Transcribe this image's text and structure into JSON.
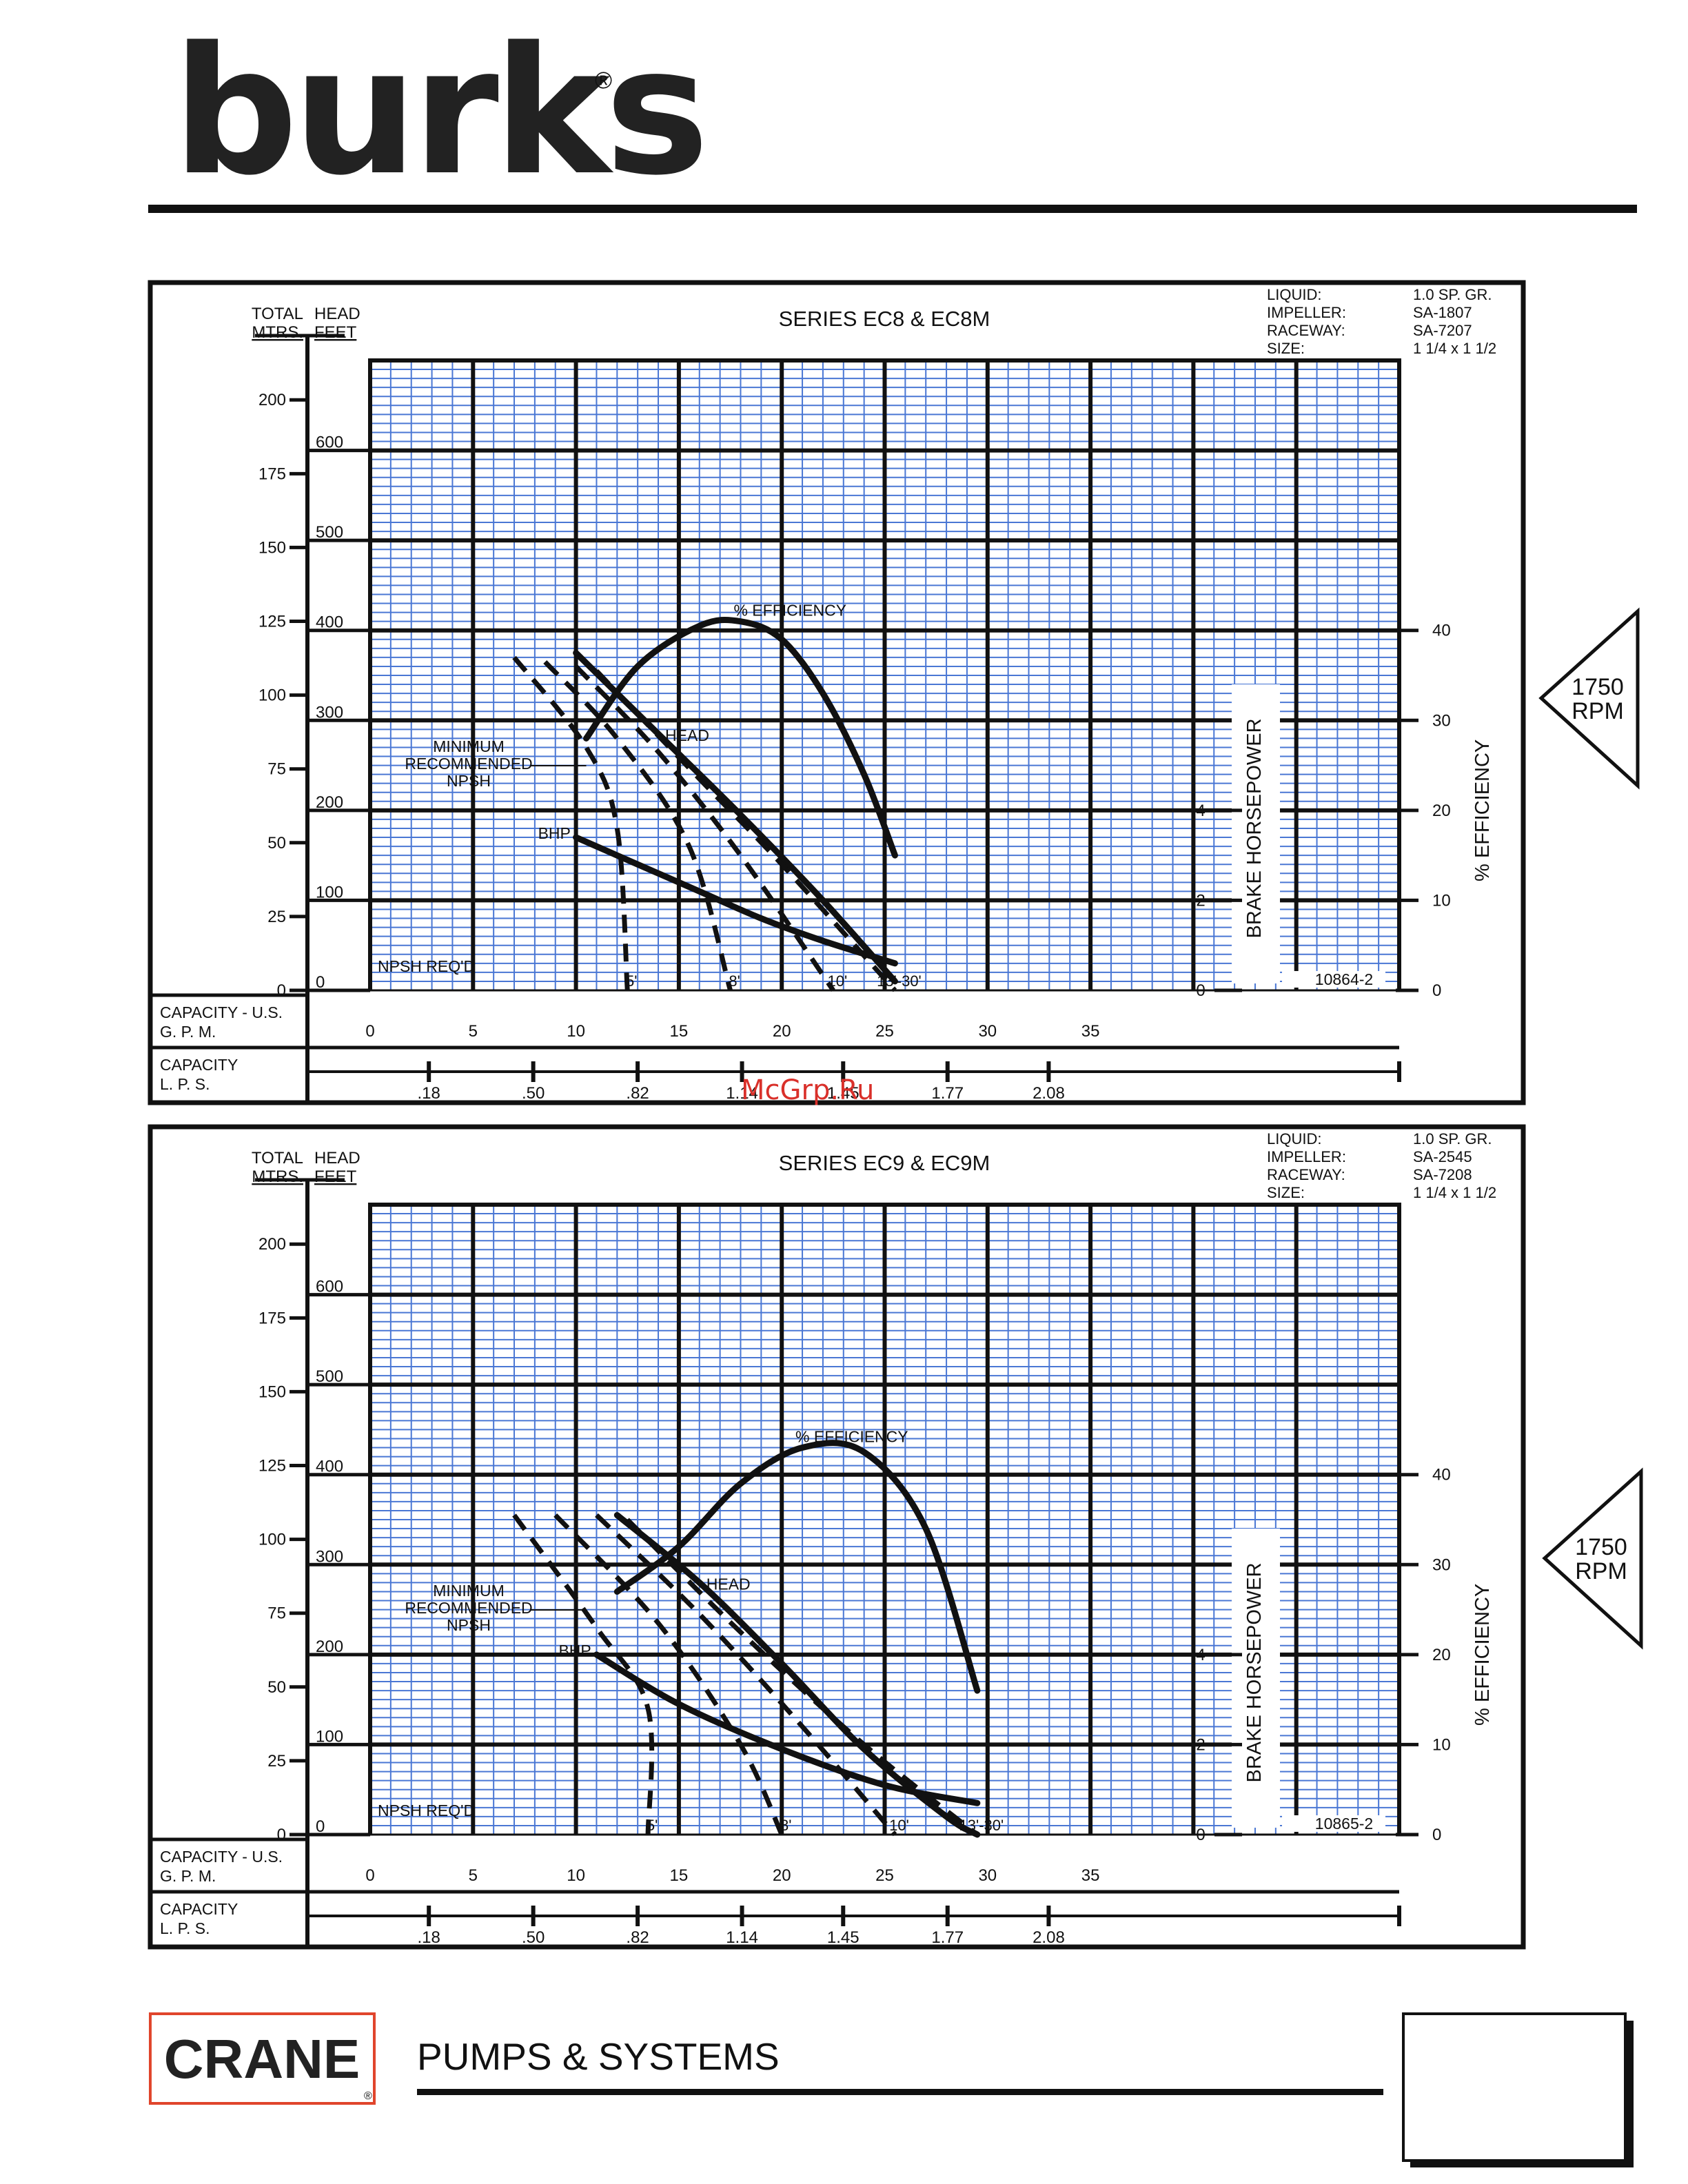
{
  "header": {
    "brand": "burks",
    "registered": "®"
  },
  "rpm_badge": {
    "value": "1750",
    "unit": "RPM"
  },
  "charts": [
    {
      "title": "SERIES  EC8 & EC8M",
      "info": [
        {
          "label": "LIQUID:",
          "value": "1.0 SP. GR."
        },
        {
          "label": "IMPELLER:",
          "value": "SA-1807"
        },
        {
          "label": "RACEWAY:",
          "value": "SA-7207"
        },
        {
          "label": "SIZE:",
          "value": "1 1/4 x 1 1/2"
        }
      ],
      "drawing_number": "10864-2"
    },
    {
      "title": "SERIES  EC9 & EC9M",
      "info": [
        {
          "label": "LIQUID:",
          "value": "1.0 SP. GR."
        },
        {
          "label": "IMPELLER:",
          "value": "SA-2545"
        },
        {
          "label": "RACEWAY:",
          "value": "SA-7208"
        },
        {
          "label": "SIZE:",
          "value": "1 1/4 x 1 1/2"
        }
      ],
      "drawing_number": "10865-2"
    }
  ],
  "labels": {
    "total_head": "TOTAL",
    "head": "HEAD",
    "mtrs": "MTRS.",
    "feet": "FEET",
    "capacity_gpm_1": "CAPACITY - U.S.",
    "capacity_gpm_2": "G. P. M.",
    "capacity_lps_1": "CAPACITY",
    "capacity_lps_2": "L. P. S.",
    "bhp_axis": "BRAKE HORSEPOWER",
    "eff_axis": "% EFFICIENCY",
    "npsh_reqd": "NPSH REQ'D",
    "min_npsh_1": "MINIMUM",
    "min_npsh_2": "RECOMMENDED",
    "min_npsh_3": "NPSH",
    "curve_head": "HEAD",
    "curve_bhp": "BHP",
    "curve_eff": "% EFFICIENCY",
    "npsh_curves": [
      "5'",
      "8'",
      "10'",
      "13'-30'"
    ]
  },
  "axes": {
    "gpm_ticks": [
      "0",
      "5",
      "10",
      "15",
      "20",
      "25",
      "30",
      "35"
    ],
    "lps_ticks": [
      ".18",
      ".50",
      ".82",
      "1.14",
      "1.45",
      "1.77",
      "2.08"
    ],
    "feet_ticks": [
      "0",
      "100",
      "200",
      "300",
      "400",
      "500",
      "600"
    ],
    "meter_ticks": [
      "0",
      "25",
      "50",
      "75",
      "100",
      "125",
      "150",
      "175",
      "200"
    ],
    "bhp_ticks": [
      "0",
      "2",
      "4"
    ],
    "eff_ticks": [
      "0",
      "10",
      "20",
      "30",
      "40"
    ]
  },
  "chart_data": [
    {
      "type": "line",
      "title": "SERIES  EC8 & EC8M",
      "xlabel": "CAPACITY - U.S. G. P. M.",
      "ylabel": "TOTAL HEAD FEET",
      "xlim": [
        0,
        50
      ],
      "ylim": [
        0,
        700
      ],
      "series": [
        {
          "name": "HEAD",
          "axis": "feet",
          "x": [
            10,
            14,
            18,
            22,
            25.5
          ],
          "y": [
            375,
            285,
            195,
            100,
            10
          ]
        },
        {
          "name": "% EFFICIENCY",
          "axis": "efficiency",
          "x": [
            10.5,
            13,
            16,
            18,
            20,
            22,
            24,
            25.5
          ],
          "y": [
            28,
            36,
            40.5,
            41,
            39,
            33,
            24,
            15
          ]
        },
        {
          "name": "BHP",
          "axis": "bhp",
          "x": [
            10,
            13,
            16,
            19,
            22,
            25.5
          ],
          "y": [
            3.4,
            2.8,
            2.2,
            1.6,
            1.1,
            0.6
          ]
        },
        {
          "name": "5'",
          "axis": "feet",
          "dashed": true,
          "x": [
            7,
            10.5,
            12,
            12.5
          ],
          "y": [
            370,
            270,
            180,
            0
          ]
        },
        {
          "name": "8'",
          "axis": "feet",
          "dashed": true,
          "x": [
            8.5,
            12,
            15.5,
            17.5
          ],
          "y": [
            365,
            280,
            160,
            0
          ]
        },
        {
          "name": "10'",
          "axis": "feet",
          "dashed": true,
          "x": [
            10,
            14,
            18,
            22.5
          ],
          "y": [
            360,
            265,
            150,
            0
          ]
        },
        {
          "name": "13'-30'",
          "axis": "feet",
          "dashed": true,
          "x": [
            11,
            16,
            20,
            25.5
          ],
          "y": [
            355,
            235,
            140,
            0
          ]
        }
      ]
    },
    {
      "type": "line",
      "title": "SERIES  EC9 & EC9M",
      "xlabel": "CAPACITY - U.S. G. P. M.",
      "ylabel": "TOTAL HEAD FEET",
      "xlim": [
        0,
        50
      ],
      "ylim": [
        0,
        700
      ],
      "series": [
        {
          "name": "HEAD",
          "axis": "feet",
          "x": [
            12,
            16,
            20,
            24,
            28,
            29.5
          ],
          "y": [
            355,
            280,
            190,
            95,
            20,
            0
          ]
        },
        {
          "name": "% EFFICIENCY",
          "axis": "efficiency",
          "x": [
            12,
            15,
            18,
            21,
            24,
            27,
            29.5
          ],
          "y": [
            27,
            32,
            39,
            43,
            42.5,
            34,
            16
          ]
        },
        {
          "name": "BHP",
          "axis": "bhp",
          "x": [
            11,
            15,
            20,
            25,
            29.5
          ],
          "y": [
            4.0,
            2.9,
            1.9,
            1.1,
            0.7
          ]
        },
        {
          "name": "5'",
          "axis": "feet",
          "dashed": true,
          "x": [
            7,
            11,
            13.5,
            13.5
          ],
          "y": [
            355,
            230,
            140,
            0
          ]
        },
        {
          "name": "8'",
          "axis": "feet",
          "dashed": true,
          "x": [
            9,
            14,
            18,
            20
          ],
          "y": [
            355,
            235,
            100,
            0
          ]
        },
        {
          "name": "10'",
          "axis": "feet",
          "dashed": true,
          "x": [
            11,
            16,
            21,
            25.5
          ],
          "y": [
            355,
            245,
            120,
            0
          ]
        },
        {
          "name": "13'-30'",
          "axis": "feet",
          "dashed": true,
          "x": [
            12.5,
            18,
            24,
            29.5
          ],
          "y": [
            350,
            225,
            100,
            0
          ]
        }
      ]
    }
  ],
  "watermark": "McGrp.Ru",
  "footer": {
    "brand": "CRANE",
    "registered": "®",
    "tagline": "PUMPS & SYSTEMS"
  }
}
